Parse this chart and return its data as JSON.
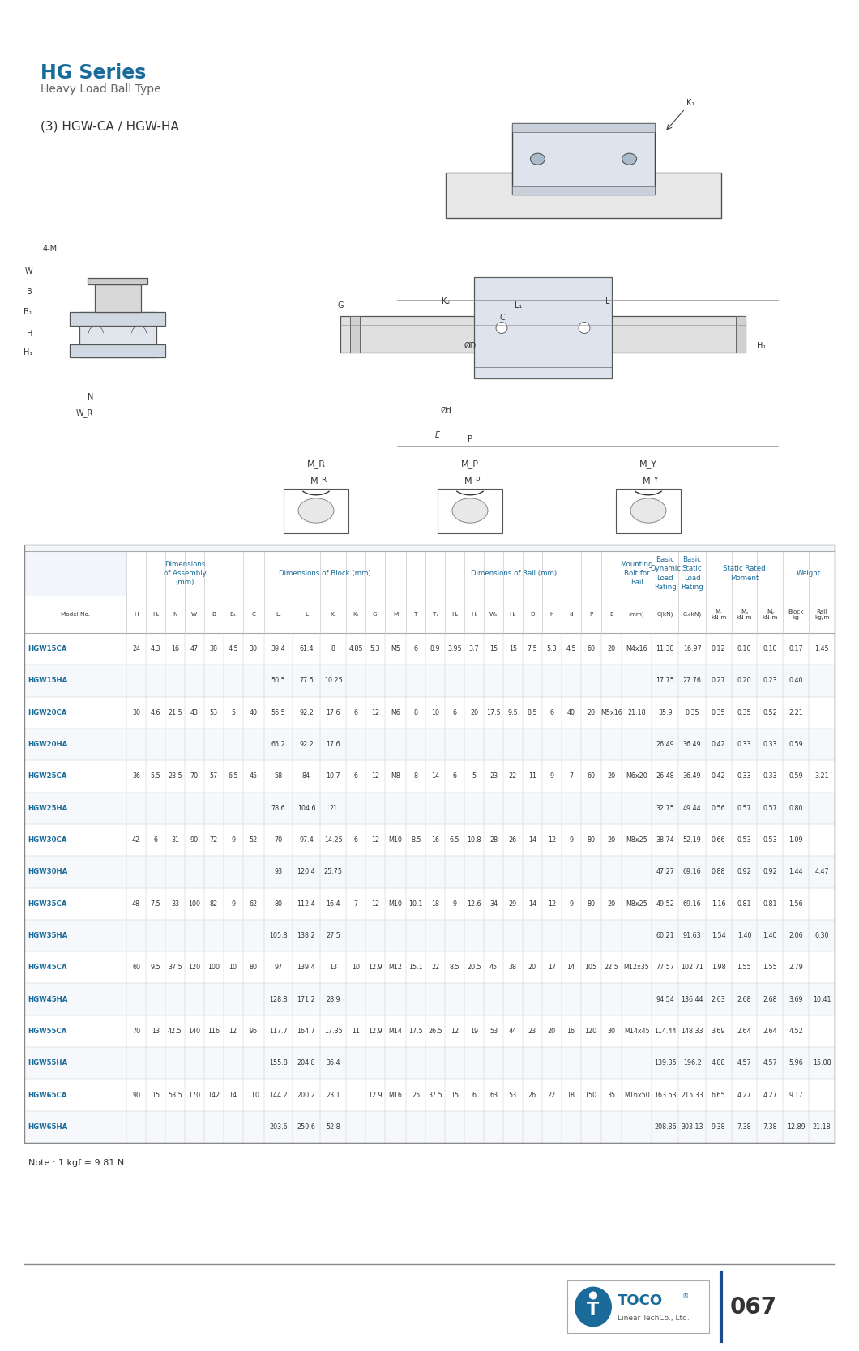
{
  "title": "HG Series",
  "subtitle": "Heavy Load Ball Type",
  "series_label": "(3) HGW-CA / HGW-HA",
  "title_color": "#1a6b9a",
  "text_color": "#333333",
  "gray_text": "#888888",
  "table_header_bg": "#e8eef5",
  "table_bg_light": "#f2f6fa",
  "note": "Note : 1 kgf = 9.81 N",
  "page_number": "067",
  "rows": [
    [
      "HGW15CA",
      "24",
      "4.3",
      "16",
      "47",
      "38",
      "4.5",
      "30",
      "39.4",
      "61.4",
      "8",
      "4.85",
      "5.3",
      "M5",
      "6",
      "8.9",
      "3.95",
      "3.7",
      "15",
      "15",
      "7.5",
      "5.3",
      "4.5",
      "60",
      "20",
      "M4x16",
      "11.38",
      "16.97",
      "0.12",
      "0.10",
      "0.10",
      "0.17",
      "1.45"
    ],
    [
      "HGW15HA",
      "",
      "",
      "",
      "",
      "",
      "",
      "",
      "50.5",
      "77.5",
      "10.25",
      "",
      "",
      "",
      "",
      "",
      "",
      "",
      "",
      "",
      "",
      "",
      "",
      "",
      "",
      "",
      "17.75",
      "27.76",
      "0.27",
      "0.20",
      "0.23",
      "0.40",
      ""
    ],
    [
      "HGW20CA",
      "30",
      "4.6",
      "21.5",
      "43",
      "53",
      "5",
      "40",
      "56.5",
      "92.2",
      "17.6",
      "6",
      "12",
      "M6",
      "8",
      "10",
      "6",
      "20",
      "17.5",
      "9.5",
      "8.5",
      "6",
      "40",
      "20",
      "M5x16",
      "21.18",
      "35.9",
      "0.35",
      "0.35",
      "0.35",
      "0.52",
      "2.21"
    ],
    [
      "HGW20HA",
      "",
      "",
      "",
      "",
      "",
      "",
      "",
      "65.2",
      "92.2",
      "17.6",
      "",
      "",
      "",
      "",
      "",
      "",
      "",
      "",
      "",
      "",
      "",
      "",
      "",
      "",
      "",
      "26.49",
      "36.49",
      "0.42",
      "0.33",
      "0.33",
      "0.59",
      ""
    ],
    [
      "HGW25CA",
      "36",
      "5.5",
      "23.5",
      "70",
      "57",
      "6.5",
      "45",
      "58",
      "84",
      "10.7",
      "6",
      "12",
      "M8",
      "8",
      "14",
      "6",
      "5",
      "23",
      "22",
      "11",
      "9",
      "7",
      "60",
      "20",
      "M6x20",
      "26.48",
      "36.49",
      "0.42",
      "0.33",
      "0.33",
      "0.59",
      "3.21"
    ],
    [
      "HGW25HA",
      "",
      "",
      "",
      "",
      "",
      "",
      "",
      "78.6",
      "104.6",
      "21",
      "",
      "",
      "",
      "",
      "",
      "",
      "",
      "",
      "",
      "",
      "",
      "",
      "",
      "",
      "",
      "32.75",
      "49.44",
      "0.56",
      "0.57",
      "0.57",
      "0.80",
      ""
    ],
    [
      "HGW30CA",
      "42",
      "6",
      "31",
      "90",
      "72",
      "9",
      "52",
      "70",
      "97.4",
      "14.25",
      "6",
      "12",
      "M10",
      "8.5",
      "16",
      "6.5",
      "10.8",
      "28",
      "26",
      "14",
      "12",
      "9",
      "80",
      "20",
      "M8x25",
      "38.74",
      "52.19",
      "0.66",
      "0.53",
      "0.53",
      "1.09",
      ""
    ],
    [
      "HGW30HA",
      "",
      "",
      "",
      "",
      "",
      "",
      "",
      "93",
      "120.4",
      "25.75",
      "",
      "",
      "",
      "",
      "",
      "",
      "",
      "",
      "",
      "",
      "",
      "",
      "",
      "",
      "",
      "47.27",
      "69.16",
      "0.88",
      "0.92",
      "0.92",
      "1.44",
      "4.47"
    ],
    [
      "HGW35CA",
      "48",
      "7.5",
      "33",
      "100",
      "82",
      "9",
      "62",
      "80",
      "112.4",
      "16.4",
      "7",
      "12",
      "M10",
      "10.1",
      "18",
      "9",
      "12.6",
      "34",
      "29",
      "14",
      "12",
      "9",
      "80",
      "20",
      "M8x25",
      "49.52",
      "69.16",
      "1.16",
      "0.81",
      "0.81",
      "1.56",
      ""
    ],
    [
      "HGW35HA",
      "",
      "",
      "",
      "",
      "",
      "",
      "",
      "105.8",
      "138.2",
      "27.5",
      "",
      "",
      "",
      "",
      "",
      "",
      "",
      "",
      "",
      "",
      "",
      "",
      "",
      "",
      "",
      "60.21",
      "91.63",
      "1.54",
      "1.40",
      "1.40",
      "2.06",
      "6.30"
    ],
    [
      "HGW45CA",
      "60",
      "9.5",
      "37.5",
      "120",
      "100",
      "10",
      "80",
      "97",
      "139.4",
      "13",
      "10",
      "12.9",
      "M12",
      "15.1",
      "22",
      "8.5",
      "20.5",
      "45",
      "38",
      "20",
      "17",
      "14",
      "105",
      "22.5",
      "M12x35",
      "77.57",
      "102.71",
      "1.98",
      "1.55",
      "1.55",
      "2.79",
      ""
    ],
    [
      "HGW45HA",
      "",
      "",
      "",
      "",
      "",
      "",
      "",
      "128.8",
      "171.2",
      "28.9",
      "",
      "",
      "",
      "",
      "",
      "",
      "",
      "",
      "",
      "",
      "",
      "",
      "",
      "",
      "",
      "94.54",
      "136.44",
      "2.63",
      "2.68",
      "2.68",
      "3.69",
      "10.41"
    ],
    [
      "HGW55CA",
      "70",
      "13",
      "42.5",
      "140",
      "116",
      "12",
      "95",
      "117.7",
      "164.7",
      "17.35",
      "11",
      "12.9",
      "M14",
      "17.5",
      "26.5",
      "12",
      "19",
      "53",
      "44",
      "23",
      "20",
      "16",
      "120",
      "30",
      "M14x45",
      "114.44",
      "148.33",
      "3.69",
      "2.64",
      "2.64",
      "4.52",
      ""
    ],
    [
      "HGW55HA",
      "",
      "",
      "",
      "",
      "",
      "",
      "",
      "155.8",
      "204.8",
      "36.4",
      "",
      "",
      "",
      "",
      "",
      "",
      "",
      "",
      "",
      "",
      "",
      "",
      "",
      "",
      "",
      "139.35",
      "196.2",
      "4.88",
      "4.57",
      "4.57",
      "5.96",
      "15.08"
    ],
    [
      "HGW65CA",
      "90",
      "15",
      "53.5",
      "170",
      "142",
      "14",
      "110",
      "144.2",
      "200.2",
      "23.1",
      "",
      "12.9",
      "M16",
      "25",
      "37.5",
      "15",
      "6",
      "63",
      "53",
      "26",
      "22",
      "18",
      "150",
      "35",
      "M16x50",
      "163.63",
      "215.33",
      "6.65",
      "4.27",
      "4.27",
      "9.17",
      ""
    ],
    [
      "HGW65HA",
      "",
      "",
      "",
      "",
      "",
      "",
      "",
      "203.6",
      "259.6",
      "52.8",
      "",
      "",
      "",
      "",
      "",
      "",
      "",
      "",
      "",
      "",
      "",
      "",
      "",
      "",
      "",
      "208.36",
      "303.13",
      "9.38",
      "7.38",
      "7.38",
      "12.89",
      "21.18"
    ]
  ]
}
